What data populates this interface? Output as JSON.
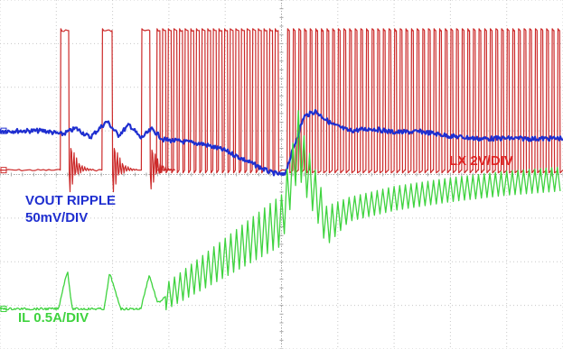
{
  "chart_data": {
    "type": "line",
    "title": "",
    "xlabel": "",
    "ylabel": "",
    "grid": true,
    "grid_divisions": {
      "x": 10,
      "y": 8
    },
    "x_range_div": [
      0,
      10
    ],
    "colors": {
      "background": "#ffffff",
      "grid": "#c8c8c8",
      "grid_center": "#a8a8a8",
      "lx": "#cc2a2a",
      "vout": "#1f2fd0",
      "il": "#3fd33f"
    },
    "series": [
      {
        "name": "LX 2V/DIV",
        "color": "#cc2a2a",
        "unit": "V",
        "scale_per_div": 2,
        "low_level_div": 4.1,
        "high_level_div": 7.3,
        "pulses_div": [
          [
            1.07,
            1.22
          ],
          [
            1.81,
            1.99
          ],
          [
            2.51,
            2.66
          ],
          [
            2.78,
            2.84
          ],
          [
            2.88,
            2.94
          ],
          [
            2.98,
            3.04
          ],
          [
            3.08,
            3.14
          ],
          [
            3.18,
            3.24
          ],
          [
            3.28,
            3.34
          ],
          [
            3.38,
            3.44
          ],
          [
            3.48,
            3.54
          ],
          [
            3.58,
            3.64
          ],
          [
            3.68,
            3.74
          ],
          [
            3.78,
            3.84
          ],
          [
            3.88,
            3.94
          ],
          [
            3.98,
            4.04
          ],
          [
            4.08,
            4.14
          ],
          [
            4.18,
            4.24
          ],
          [
            4.28,
            4.34
          ],
          [
            4.38,
            4.44
          ],
          [
            4.48,
            4.54
          ],
          [
            4.58,
            4.64
          ],
          [
            4.68,
            4.74
          ],
          [
            4.78,
            4.84
          ],
          [
            4.88,
            4.94
          ],
          [
            5.1,
            5.14
          ],
          [
            5.2,
            5.24
          ],
          [
            5.3,
            5.34
          ],
          [
            5.4,
            5.44
          ],
          [
            5.5,
            5.54
          ],
          [
            5.6,
            5.64
          ],
          [
            5.7,
            5.74
          ],
          [
            5.8,
            5.84
          ],
          [
            5.9,
            5.94
          ],
          [
            6.0,
            6.04
          ],
          [
            6.1,
            6.14
          ],
          [
            6.2,
            6.24
          ],
          [
            6.3,
            6.34
          ],
          [
            6.4,
            6.44
          ],
          [
            6.5,
            6.54
          ],
          [
            6.6,
            6.64
          ],
          [
            6.7,
            6.74
          ],
          [
            6.8,
            6.84
          ],
          [
            6.9,
            6.94
          ],
          [
            7.0,
            7.04
          ],
          [
            7.1,
            7.14
          ],
          [
            7.2,
            7.24
          ],
          [
            7.3,
            7.34
          ],
          [
            7.4,
            7.44
          ],
          [
            7.5,
            7.54
          ],
          [
            7.6,
            7.64
          ],
          [
            7.7,
            7.74
          ],
          [
            7.8,
            7.84
          ],
          [
            7.9,
            7.94
          ],
          [
            8.0,
            8.04
          ],
          [
            8.1,
            8.14
          ],
          [
            8.2,
            8.24
          ],
          [
            8.3,
            8.34
          ],
          [
            8.4,
            8.44
          ],
          [
            8.5,
            8.54
          ],
          [
            8.6,
            8.64
          ],
          [
            8.7,
            8.74
          ],
          [
            8.8,
            8.84
          ],
          [
            8.9,
            8.94
          ],
          [
            9.0,
            9.04
          ],
          [
            9.1,
            9.14
          ],
          [
            9.2,
            9.24
          ],
          [
            9.3,
            9.34
          ],
          [
            9.4,
            9.44
          ],
          [
            9.5,
            9.54
          ],
          [
            9.6,
            9.64
          ],
          [
            9.7,
            9.74
          ],
          [
            9.8,
            9.84
          ],
          [
            9.9,
            9.94
          ]
        ]
      },
      {
        "name": "VOUT RIPPLE 50mV/DIV",
        "color": "#1f2fd0",
        "unit": "mV",
        "scale_per_div": 50,
        "x_div": [
          0,
          0.8,
          1.1,
          1.35,
          1.6,
          1.9,
          2.1,
          2.3,
          2.5,
          2.7,
          2.9,
          3.2,
          3.6,
          4.0,
          4.4,
          4.8,
          5.05,
          5.2,
          5.4,
          5.6,
          5.9,
          6.2,
          6.6,
          7.0,
          7.5,
          8.0,
          8.5,
          9.0,
          9.5,
          10.0
        ],
        "y_div": [
          5.0,
          5.0,
          4.92,
          5.06,
          4.85,
          5.22,
          4.9,
          5.14,
          4.83,
          5.04,
          4.8,
          4.76,
          4.7,
          4.55,
          4.3,
          4.05,
          3.98,
          4.55,
          5.33,
          5.45,
          5.15,
          5.0,
          5.05,
          4.97,
          4.98,
          4.88,
          4.82,
          4.83,
          4.82,
          4.83
        ]
      },
      {
        "name": "IL 0.5A/DIV",
        "color": "#3fd33f",
        "unit": "A",
        "scale_per_div": 0.5,
        "x_div": [
          0,
          1.04,
          1.12,
          1.2,
          1.28,
          1.85,
          1.95,
          2.05,
          2.15,
          2.5,
          2.65,
          2.8,
          2.95,
          5.0,
          5.28,
          5.3,
          5.36,
          5.5,
          5.65,
          5.8,
          6.2,
          7.0,
          8.0,
          9.0,
          10.0
        ],
        "y_div": [
          0.92,
          0.92,
          1.4,
          1.8,
          0.92,
          0.92,
          1.75,
          1.3,
          0.92,
          0.92,
          1.7,
          1.05,
          1.2,
          2.95,
          4.55,
          4.82,
          4.4,
          3.9,
          3.4,
          2.82,
          3.2,
          3.45,
          3.65,
          3.8,
          3.9
        ],
        "ripple_start_div": 2.95,
        "ripple_period_div": 0.1,
        "ripple_pp_div": [
          [
            2.95,
            0.6
          ],
          [
            4.95,
            1.15
          ],
          [
            5.35,
            1.3
          ],
          [
            6.2,
            0.55
          ],
          [
            10.0,
            0.55
          ]
        ]
      }
    ],
    "trace_labels": {
      "lx": "LX 2V/DIV",
      "vout_line1": "VOUT RIPPLE",
      "vout_line2": "50mV/DIV",
      "il": "IL 0.5A/DIV"
    },
    "channel_marker": "·"
  }
}
